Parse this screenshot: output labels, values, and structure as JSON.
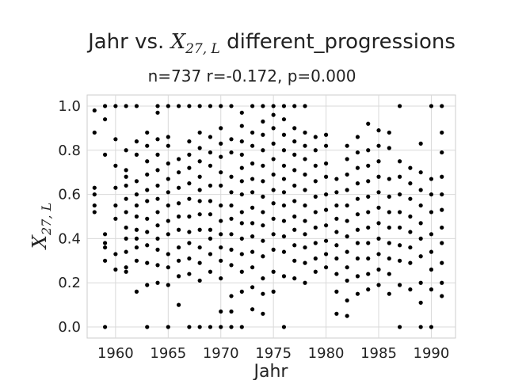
{
  "chart_data": {
    "type": "scatter",
    "title": "Jahr vs. X_{27,L} different_progressions",
    "title_prefix": "Jahr vs. ",
    "title_var": "X",
    "title_sub": "27, L",
    "title_suffix": " different_progressions",
    "subtitle": "n=737 r=-0.172, p=0.000",
    "xlabel": "Jahr",
    "ylabel_var": "X",
    "ylabel_sub": "27, L",
    "xlim": [
      1957.3,
      1992.3
    ],
    "ylim": [
      -0.05,
      1.05
    ],
    "xticks": [
      1960,
      1965,
      1970,
      1975,
      1980,
      1985,
      1990
    ],
    "yticks": [
      0.0,
      0.2,
      0.4,
      0.6,
      0.8,
      1.0
    ],
    "grid": true,
    "point_color": "#000000",
    "points": [
      [
        1958,
        0.98
      ],
      [
        1958,
        0.88
      ],
      [
        1958,
        0.63
      ],
      [
        1958,
        0.6
      ],
      [
        1958,
        0.55
      ],
      [
        1958,
        0.52
      ],
      [
        1959,
        1.0
      ],
      [
        1959,
        0.94
      ],
      [
        1959,
        0.78
      ],
      [
        1959,
        0.42
      ],
      [
        1959,
        0.38
      ],
      [
        1959,
        0.36
      ],
      [
        1959,
        0.3
      ],
      [
        1959,
        0.0
      ],
      [
        1960,
        1.0
      ],
      [
        1960,
        0.85
      ],
      [
        1960,
        0.73
      ],
      [
        1960,
        0.63
      ],
      [
        1960,
        0.55
      ],
      [
        1960,
        0.49
      ],
      [
        1960,
        0.33
      ],
      [
        1960,
        0.26
      ],
      [
        1961,
        1.0
      ],
      [
        1961,
        0.8
      ],
      [
        1961,
        0.71
      ],
      [
        1961,
        0.68
      ],
      [
        1961,
        0.64
      ],
      [
        1961,
        0.58
      ],
      [
        1961,
        0.52
      ],
      [
        1961,
        0.45
      ],
      [
        1961,
        0.4
      ],
      [
        1961,
        0.34
      ],
      [
        1961,
        0.27
      ],
      [
        1961,
        0.25
      ],
      [
        1962,
        1.0
      ],
      [
        1962,
        0.84
      ],
      [
        1962,
        0.78
      ],
      [
        1962,
        0.66
      ],
      [
        1962,
        0.6
      ],
      [
        1962,
        0.55
      ],
      [
        1962,
        0.5
      ],
      [
        1962,
        0.44
      ],
      [
        1962,
        0.4
      ],
      [
        1962,
        0.36
      ],
      [
        1962,
        0.3
      ],
      [
        1962,
        0.16
      ],
      [
        1963,
        0.88
      ],
      [
        1963,
        0.82
      ],
      [
        1963,
        0.75
      ],
      [
        1963,
        0.69
      ],
      [
        1963,
        0.62
      ],
      [
        1963,
        0.57
      ],
      [
        1963,
        0.49
      ],
      [
        1963,
        0.43
      ],
      [
        1963,
        0.37
      ],
      [
        1963,
        0.29
      ],
      [
        1963,
        0.19
      ],
      [
        1963,
        0.0
      ],
      [
        1964,
        1.0
      ],
      [
        1964,
        0.97
      ],
      [
        1964,
        0.85
      ],
      [
        1964,
        0.78
      ],
      [
        1964,
        0.71
      ],
      [
        1964,
        0.64
      ],
      [
        1964,
        0.58
      ],
      [
        1964,
        0.52
      ],
      [
        1964,
        0.46
      ],
      [
        1964,
        0.4
      ],
      [
        1964,
        0.35
      ],
      [
        1964,
        0.28
      ],
      [
        1964,
        0.2
      ],
      [
        1965,
        1.0
      ],
      [
        1965,
        0.86
      ],
      [
        1965,
        0.82
      ],
      [
        1965,
        0.74
      ],
      [
        1965,
        0.67
      ],
      [
        1965,
        0.61
      ],
      [
        1965,
        0.55
      ],
      [
        1965,
        0.48
      ],
      [
        1965,
        0.42
      ],
      [
        1965,
        0.33
      ],
      [
        1965,
        0.27
      ],
      [
        1965,
        0.19
      ],
      [
        1965,
        0.0
      ],
      [
        1966,
        1.0
      ],
      [
        1966,
        0.76
      ],
      [
        1966,
        0.7
      ],
      [
        1966,
        0.63
      ],
      [
        1966,
        0.56
      ],
      [
        1966,
        0.5
      ],
      [
        1966,
        0.44
      ],
      [
        1966,
        0.36
      ],
      [
        1966,
        0.3
      ],
      [
        1966,
        0.23
      ],
      [
        1966,
        0.1
      ],
      [
        1967,
        1.0
      ],
      [
        1967,
        0.84
      ],
      [
        1967,
        0.78
      ],
      [
        1967,
        0.72
      ],
      [
        1967,
        0.65
      ],
      [
        1967,
        0.58
      ],
      [
        1967,
        0.5
      ],
      [
        1967,
        0.43
      ],
      [
        1967,
        0.38
      ],
      [
        1967,
        0.31
      ],
      [
        1967,
        0.24
      ],
      [
        1967,
        0.0
      ],
      [
        1968,
        1.0
      ],
      [
        1968,
        0.88
      ],
      [
        1968,
        0.81
      ],
      [
        1968,
        0.75
      ],
      [
        1968,
        0.68
      ],
      [
        1968,
        0.62
      ],
      [
        1968,
        0.57
      ],
      [
        1968,
        0.51
      ],
      [
        1968,
        0.44
      ],
      [
        1968,
        0.36
      ],
      [
        1968,
        0.29
      ],
      [
        1968,
        0.21
      ],
      [
        1968,
        0.0
      ],
      [
        1969,
        1.0
      ],
      [
        1969,
        0.86
      ],
      [
        1969,
        0.79
      ],
      [
        1969,
        0.73
      ],
      [
        1969,
        0.64
      ],
      [
        1969,
        0.57
      ],
      [
        1969,
        0.51
      ],
      [
        1969,
        0.44
      ],
      [
        1969,
        0.4
      ],
      [
        1969,
        0.33
      ],
      [
        1969,
        0.25
      ],
      [
        1969,
        0.0
      ],
      [
        1970,
        1.0
      ],
      [
        1970,
        0.9
      ],
      [
        1970,
        0.83
      ],
      [
        1970,
        0.77
      ],
      [
        1970,
        0.7
      ],
      [
        1970,
        0.64
      ],
      [
        1970,
        0.55
      ],
      [
        1970,
        0.48
      ],
      [
        1970,
        0.42
      ],
      [
        1970,
        0.36
      ],
      [
        1970,
        0.3
      ],
      [
        1970,
        0.22
      ],
      [
        1970,
        0.07
      ],
      [
        1970,
        0.0
      ],
      [
        1971,
        1.0
      ],
      [
        1971,
        0.85
      ],
      [
        1971,
        0.79
      ],
      [
        1971,
        0.68
      ],
      [
        1971,
        0.61
      ],
      [
        1971,
        0.55
      ],
      [
        1971,
        0.49
      ],
      [
        1971,
        0.42
      ],
      [
        1971,
        0.35
      ],
      [
        1971,
        0.28
      ],
      [
        1971,
        0.14
      ],
      [
        1971,
        0.07
      ],
      [
        1971,
        0.0
      ],
      [
        1972,
        0.97
      ],
      [
        1972,
        0.91
      ],
      [
        1972,
        0.84
      ],
      [
        1972,
        0.78
      ],
      [
        1972,
        0.72
      ],
      [
        1972,
        0.66
      ],
      [
        1972,
        0.6
      ],
      [
        1972,
        0.52
      ],
      [
        1972,
        0.47
      ],
      [
        1972,
        0.4
      ],
      [
        1972,
        0.33
      ],
      [
        1972,
        0.25
      ],
      [
        1972,
        0.16
      ],
      [
        1972,
        0.0
      ],
      [
        1973,
        1.0
      ],
      [
        1973,
        0.88
      ],
      [
        1973,
        0.82
      ],
      [
        1973,
        0.74
      ],
      [
        1973,
        0.67
      ],
      [
        1973,
        0.61
      ],
      [
        1973,
        0.54
      ],
      [
        1973,
        0.47
      ],
      [
        1973,
        0.41
      ],
      [
        1973,
        0.34
      ],
      [
        1973,
        0.27
      ],
      [
        1973,
        0.18
      ],
      [
        1973,
        0.08
      ],
      [
        1974,
        1.0
      ],
      [
        1974,
        0.93
      ],
      [
        1974,
        0.87
      ],
      [
        1974,
        0.8
      ],
      [
        1974,
        0.73
      ],
      [
        1974,
        0.66
      ],
      [
        1974,
        0.59
      ],
      [
        1974,
        0.52
      ],
      [
        1974,
        0.46
      ],
      [
        1974,
        0.39
      ],
      [
        1974,
        0.32
      ],
      [
        1974,
        0.22
      ],
      [
        1974,
        0.15
      ],
      [
        1974,
        0.06
      ],
      [
        1975,
        1.0
      ],
      [
        1975,
        0.96
      ],
      [
        1975,
        0.9
      ],
      [
        1975,
        0.83
      ],
      [
        1975,
        0.76
      ],
      [
        1975,
        0.69
      ],
      [
        1975,
        0.62
      ],
      [
        1975,
        0.56
      ],
      [
        1975,
        0.49
      ],
      [
        1975,
        0.42
      ],
      [
        1975,
        0.35
      ],
      [
        1975,
        0.25
      ],
      [
        1975,
        0.16
      ],
      [
        1976,
        1.0
      ],
      [
        1976,
        0.94
      ],
      [
        1976,
        0.87
      ],
      [
        1976,
        0.8
      ],
      [
        1976,
        0.73
      ],
      [
        1976,
        0.67
      ],
      [
        1976,
        0.61
      ],
      [
        1976,
        0.55
      ],
      [
        1976,
        0.48
      ],
      [
        1976,
        0.41
      ],
      [
        1976,
        0.34
      ],
      [
        1976,
        0.23
      ],
      [
        1976,
        0.0
      ],
      [
        1977,
        1.0
      ],
      [
        1977,
        0.9
      ],
      [
        1977,
        0.84
      ],
      [
        1977,
        0.78
      ],
      [
        1977,
        0.71
      ],
      [
        1977,
        0.64
      ],
      [
        1977,
        0.57
      ],
      [
        1977,
        0.5
      ],
      [
        1977,
        0.44
      ],
      [
        1977,
        0.37
      ],
      [
        1977,
        0.3
      ],
      [
        1977,
        0.22
      ],
      [
        1978,
        1.0
      ],
      [
        1978,
        0.88
      ],
      [
        1978,
        0.82
      ],
      [
        1978,
        0.76
      ],
      [
        1978,
        0.69
      ],
      [
        1978,
        0.62
      ],
      [
        1978,
        0.55
      ],
      [
        1978,
        0.48
      ],
      [
        1978,
        0.42
      ],
      [
        1978,
        0.36
      ],
      [
        1978,
        0.29
      ],
      [
        1978,
        0.2
      ],
      [
        1979,
        0.86
      ],
      [
        1979,
        0.8
      ],
      [
        1979,
        0.73
      ],
      [
        1979,
        0.66
      ],
      [
        1979,
        0.59
      ],
      [
        1979,
        0.52
      ],
      [
        1979,
        0.45
      ],
      [
        1979,
        0.38
      ],
      [
        1979,
        0.31
      ],
      [
        1979,
        0.25
      ],
      [
        1980,
        0.87
      ],
      [
        1980,
        0.82
      ],
      [
        1980,
        0.74
      ],
      [
        1980,
        0.68
      ],
      [
        1980,
        0.6
      ],
      [
        1980,
        0.53
      ],
      [
        1980,
        0.46
      ],
      [
        1980,
        0.39
      ],
      [
        1980,
        0.33
      ],
      [
        1980,
        0.27
      ],
      [
        1981,
        0.67
      ],
      [
        1981,
        0.61
      ],
      [
        1981,
        0.55
      ],
      [
        1981,
        0.49
      ],
      [
        1981,
        0.43
      ],
      [
        1981,
        0.37
      ],
      [
        1981,
        0.31
      ],
      [
        1981,
        0.24
      ],
      [
        1981,
        0.16
      ],
      [
        1981,
        0.06
      ],
      [
        1982,
        0.82
      ],
      [
        1982,
        0.76
      ],
      [
        1982,
        0.69
      ],
      [
        1982,
        0.62
      ],
      [
        1982,
        0.55
      ],
      [
        1982,
        0.48
      ],
      [
        1982,
        0.41
      ],
      [
        1982,
        0.34
      ],
      [
        1982,
        0.27
      ],
      [
        1982,
        0.21
      ],
      [
        1982,
        0.12
      ],
      [
        1982,
        0.05
      ],
      [
        1983,
        0.86
      ],
      [
        1983,
        0.79
      ],
      [
        1983,
        0.72
      ],
      [
        1983,
        0.65
      ],
      [
        1983,
        0.58
      ],
      [
        1983,
        0.51
      ],
      [
        1983,
        0.44
      ],
      [
        1983,
        0.38
      ],
      [
        1983,
        0.31
      ],
      [
        1983,
        0.23
      ],
      [
        1983,
        0.15
      ],
      [
        1984,
        0.92
      ],
      [
        1984,
        0.8
      ],
      [
        1984,
        0.73
      ],
      [
        1984,
        0.66
      ],
      [
        1984,
        0.59
      ],
      [
        1984,
        0.52
      ],
      [
        1984,
        0.45
      ],
      [
        1984,
        0.38
      ],
      [
        1984,
        0.31
      ],
      [
        1984,
        0.24
      ],
      [
        1984,
        0.17
      ],
      [
        1985,
        0.89
      ],
      [
        1985,
        0.82
      ],
      [
        1985,
        0.75
      ],
      [
        1985,
        0.68
      ],
      [
        1985,
        0.61
      ],
      [
        1985,
        0.54
      ],
      [
        1985,
        0.47
      ],
      [
        1985,
        0.4
      ],
      [
        1985,
        0.33
      ],
      [
        1985,
        0.26
      ],
      [
        1985,
        0.19
      ],
      [
        1986,
        0.88
      ],
      [
        1986,
        0.81
      ],
      [
        1986,
        0.67
      ],
      [
        1986,
        0.59
      ],
      [
        1986,
        0.52
      ],
      [
        1986,
        0.45
      ],
      [
        1986,
        0.38
      ],
      [
        1986,
        0.31
      ],
      [
        1986,
        0.24
      ],
      [
        1986,
        0.15
      ],
      [
        1987,
        1.0
      ],
      [
        1987,
        0.75
      ],
      [
        1987,
        0.68
      ],
      [
        1987,
        0.6
      ],
      [
        1987,
        0.52
      ],
      [
        1987,
        0.45
      ],
      [
        1987,
        0.37
      ],
      [
        1987,
        0.3
      ],
      [
        1987,
        0.19
      ],
      [
        1987,
        0.0
      ],
      [
        1988,
        0.72
      ],
      [
        1988,
        0.65
      ],
      [
        1988,
        0.58
      ],
      [
        1988,
        0.5
      ],
      [
        1988,
        0.43
      ],
      [
        1988,
        0.36
      ],
      [
        1988,
        0.29
      ],
      [
        1988,
        0.17
      ],
      [
        1989,
        0.83
      ],
      [
        1989,
        0.7
      ],
      [
        1989,
        0.62
      ],
      [
        1989,
        0.55
      ],
      [
        1989,
        0.47
      ],
      [
        1989,
        0.4
      ],
      [
        1989,
        0.32
      ],
      [
        1989,
        0.2
      ],
      [
        1989,
        0.11
      ],
      [
        1989,
        0.0
      ],
      [
        1990,
        1.0
      ],
      [
        1990,
        0.67
      ],
      [
        1990,
        0.6
      ],
      [
        1990,
        0.52
      ],
      [
        1990,
        0.42
      ],
      [
        1990,
        0.34
      ],
      [
        1990,
        0.26
      ],
      [
        1990,
        0.17
      ],
      [
        1990,
        0.0
      ],
      [
        1991,
        1.0
      ],
      [
        1991,
        0.88
      ],
      [
        1991,
        0.79
      ],
      [
        1991,
        0.68
      ],
      [
        1991,
        0.6
      ],
      [
        1991,
        0.53
      ],
      [
        1991,
        0.45
      ],
      [
        1991,
        0.38
      ],
      [
        1991,
        0.29
      ],
      [
        1991,
        0.2
      ],
      [
        1991,
        0.14
      ]
    ]
  }
}
